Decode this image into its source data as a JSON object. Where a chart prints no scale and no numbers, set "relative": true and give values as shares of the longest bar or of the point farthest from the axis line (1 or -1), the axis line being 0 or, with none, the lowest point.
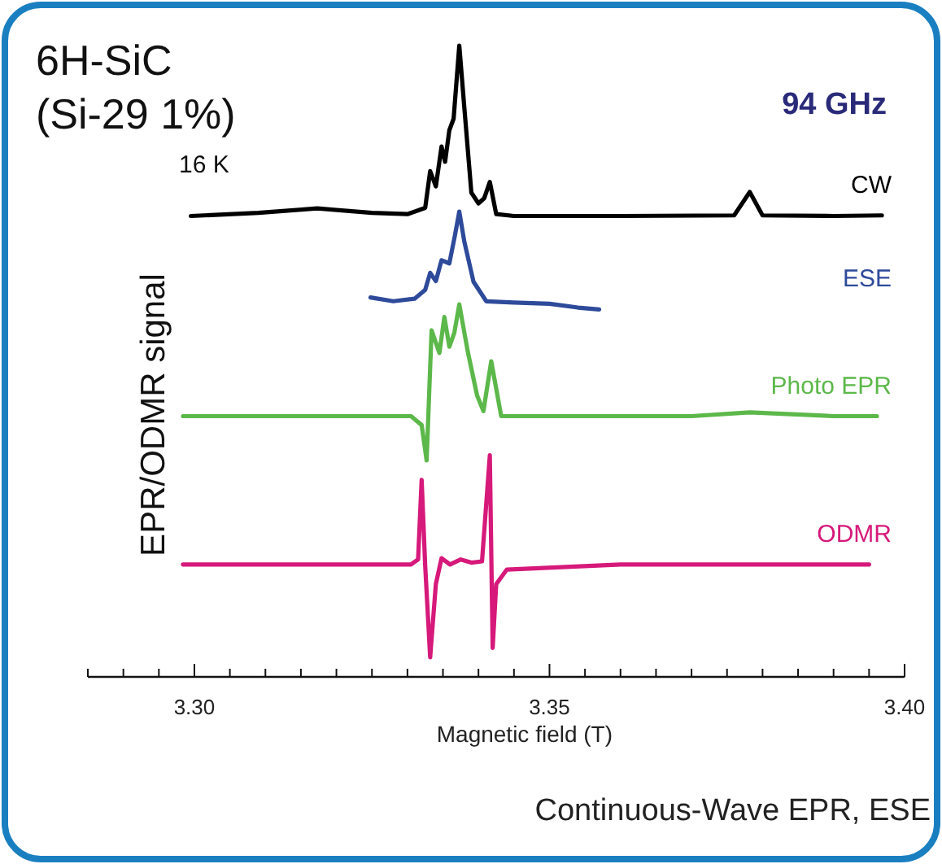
{
  "chart_data": {
    "type": "line",
    "title": "6H-SiC\n(Si-29 1%)",
    "xlabel": "Magnetic field (T)",
    "ylabel": "EPR/ODMR signal",
    "relative": true,
    "annotations": [
      "16 K",
      "94 GHz",
      "Continuous-Wave EPR, ESE"
    ],
    "xlim": [
      3.285,
      3.4
    ],
    "xticks": [
      {
        "value": 3.285,
        "label": null
      },
      {
        "value": 3.29,
        "label": null
      },
      {
        "value": 3.295,
        "label": null
      },
      {
        "value": 3.3,
        "label": "3.30"
      },
      {
        "value": 3.305,
        "label": null
      },
      {
        "value": 3.31,
        "label": null
      },
      {
        "value": 3.315,
        "label": null
      },
      {
        "value": 3.32,
        "label": null
      },
      {
        "value": 3.325,
        "label": null
      },
      {
        "value": 3.33,
        "label": null
      },
      {
        "value": 3.335,
        "label": null
      },
      {
        "value": 3.34,
        "label": null
      },
      {
        "value": 3.345,
        "label": null
      },
      {
        "value": 3.35,
        "label": "3.35"
      },
      {
        "value": 3.355,
        "label": null
      },
      {
        "value": 3.36,
        "label": null
      },
      {
        "value": 3.365,
        "label": null
      },
      {
        "value": 3.37,
        "label": null
      },
      {
        "value": 3.375,
        "label": null
      },
      {
        "value": 3.38,
        "label": null
      },
      {
        "value": 3.385,
        "label": null
      },
      {
        "value": 3.39,
        "label": null
      },
      {
        "value": 3.395,
        "label": null
      },
      {
        "value": 3.4,
        "label": "3.40"
      }
    ],
    "series": [
      {
        "name": "CW",
        "color": "#000000",
        "x": [
          3.2995,
          3.309,
          3.3173,
          3.325,
          3.33,
          3.3325,
          3.3332,
          3.334,
          3.3348,
          3.3353,
          3.3359,
          3.3365,
          3.3373,
          3.338,
          3.339,
          3.34,
          3.3408,
          3.3416,
          3.3425,
          3.345,
          3.36,
          3.376,
          3.3782,
          3.38,
          3.39,
          3.3968
        ],
        "values": [
          0.73,
          0.735,
          0.742,
          0.735,
          0.733,
          0.743,
          0.801,
          0.777,
          0.84,
          0.816,
          0.866,
          0.884,
          1.0,
          0.903,
          0.767,
          0.75,
          0.758,
          0.784,
          0.733,
          0.73,
          0.73,
          0.731,
          0.768,
          0.731,
          0.73,
          0.731
        ]
      },
      {
        "name": "ESE",
        "color": "#2e4a9a",
        "x": [
          3.3248,
          3.328,
          3.331,
          3.3325,
          3.3332,
          3.334,
          3.3348,
          3.3359,
          3.3367,
          3.3373,
          3.338,
          3.3393,
          3.3411,
          3.345,
          3.35,
          3.354,
          3.357
        ],
        "values": [
          0.601,
          0.595,
          0.599,
          0.613,
          0.64,
          0.627,
          0.66,
          0.655,
          0.7,
          0.737,
          0.69,
          0.626,
          0.595,
          0.593,
          0.591,
          0.585,
          0.582
        ]
      },
      {
        "name": "Photo EPR",
        "color": "#5cb84a",
        "x": [
          3.2984,
          3.315,
          3.3305,
          3.332,
          3.3327,
          3.3334,
          3.3345,
          3.3352,
          3.3359,
          3.3366,
          3.3373,
          3.3385,
          3.3398,
          3.3407,
          3.3418,
          3.3432,
          3.35,
          3.37,
          3.3782,
          3.39,
          3.3961
        ],
        "values": [
          0.413,
          0.413,
          0.413,
          0.399,
          0.343,
          0.549,
          0.513,
          0.57,
          0.523,
          0.545,
          0.59,
          0.515,
          0.446,
          0.421,
          0.5,
          0.413,
          0.413,
          0.413,
          0.419,
          0.413,
          0.413
        ]
      },
      {
        "name": "ODMR",
        "color": "#d6197a",
        "x": [
          3.2984,
          3.3305,
          3.3315,
          3.332,
          3.3325,
          3.3332,
          3.334,
          3.3348,
          3.336,
          3.3375,
          3.339,
          3.3405,
          3.3416,
          3.342,
          3.3425,
          3.344,
          3.36,
          3.395
        ],
        "values": [
          0.178,
          0.178,
          0.186,
          0.312,
          0.176,
          0.031,
          0.147,
          0.188,
          0.178,
          0.186,
          0.181,
          0.183,
          0.351,
          0.046,
          0.147,
          0.17,
          0.178,
          0.178
        ]
      }
    ]
  }
}
